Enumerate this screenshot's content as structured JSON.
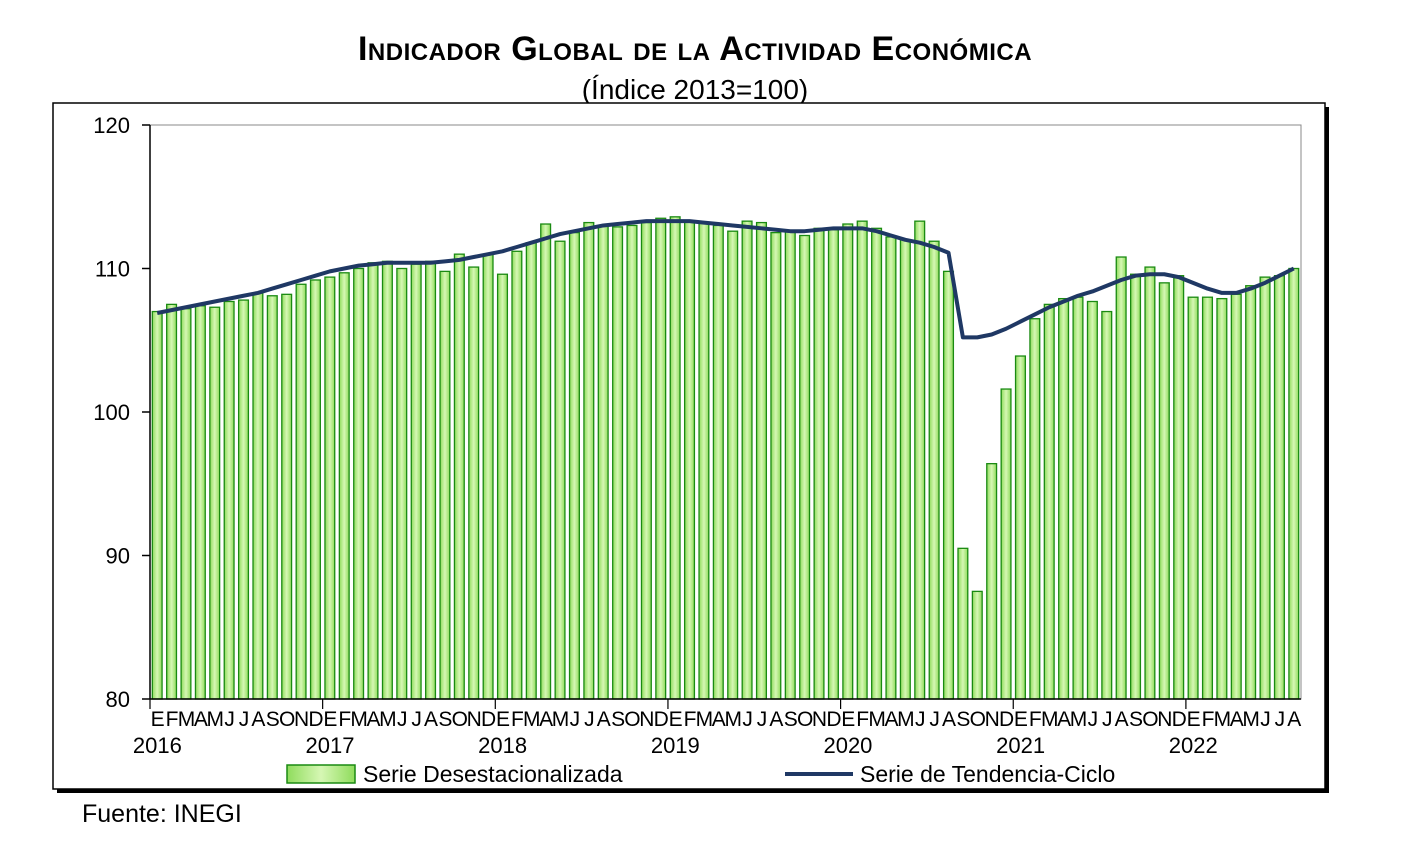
{
  "chart_data": {
    "type": "bar",
    "title": "Indicador Global de la Actividad Económica",
    "subtitle": "(Índice 2013=100)",
    "ylim": [
      80,
      120
    ],
    "y_ticks": [
      "80",
      "90",
      "100",
      "110",
      "120"
    ],
    "month_labels": [
      "E",
      "F",
      "M",
      "A",
      "M",
      "J",
      "J",
      "A",
      "S",
      "O",
      "N",
      "D"
    ],
    "years": [
      "2016",
      "2017",
      "2018",
      "2019",
      "2020",
      "2021",
      "2022"
    ],
    "categories_count": 80,
    "series": [
      {
        "name": "Serie Desestacionalizada",
        "kind": "bar",
        "color": "#b4ec8a",
        "edge": "#1a8a12",
        "values": [
          107.0,
          107.5,
          107.2,
          107.4,
          107.3,
          107.7,
          107.8,
          108.3,
          108.1,
          108.2,
          108.9,
          109.2,
          109.4,
          109.7,
          110.0,
          110.4,
          110.5,
          110.0,
          110.3,
          110.5,
          109.8,
          111.0,
          110.1,
          111.0,
          109.6,
          111.2,
          111.8,
          113.1,
          111.9,
          112.5,
          113.2,
          113.0,
          112.9,
          113.0,
          113.2,
          113.5,
          113.6,
          113.3,
          113.2,
          113.0,
          112.6,
          113.3,
          113.2,
          112.5,
          112.6,
          112.3,
          112.8,
          112.7,
          113.1,
          113.3,
          112.8,
          112.2,
          112.0,
          113.3,
          111.9,
          109.8,
          90.5,
          87.5,
          96.4,
          101.6,
          103.9,
          106.5,
          107.5,
          107.9,
          108.0,
          107.7,
          107.0,
          110.8,
          109.6,
          110.1,
          109.0,
          109.5,
          108.0,
          108.0,
          107.9,
          108.2,
          108.8,
          109.4,
          109.5,
          110.0
        ]
      },
      {
        "name": "Serie de Tendencia-Ciclo",
        "kind": "line",
        "color": "#1f3864",
        "values": [
          106.9,
          107.1,
          107.3,
          107.5,
          107.7,
          107.9,
          108.1,
          108.3,
          108.6,
          108.9,
          109.2,
          109.5,
          109.8,
          110.0,
          110.2,
          110.3,
          110.4,
          110.4,
          110.4,
          110.4,
          110.5,
          110.6,
          110.8,
          111.0,
          111.2,
          111.5,
          111.8,
          112.1,
          112.4,
          112.6,
          112.8,
          113.0,
          113.1,
          113.2,
          113.3,
          113.3,
          113.3,
          113.3,
          113.2,
          113.1,
          113.0,
          112.9,
          112.8,
          112.7,
          112.6,
          112.6,
          112.7,
          112.8,
          112.8,
          112.8,
          112.6,
          112.3,
          112.0,
          111.8,
          111.5,
          111.1,
          105.2,
          105.2,
          105.4,
          105.8,
          106.3,
          106.8,
          107.3,
          107.7,
          108.1,
          108.4,
          108.8,
          109.2,
          109.5,
          109.6,
          109.6,
          109.4,
          109.0,
          108.6,
          108.3,
          108.3,
          108.6,
          109.0,
          109.5,
          110.0
        ]
      }
    ],
    "legend_position": "bottom",
    "grid": false
  },
  "source": "Fuente: INEGI"
}
